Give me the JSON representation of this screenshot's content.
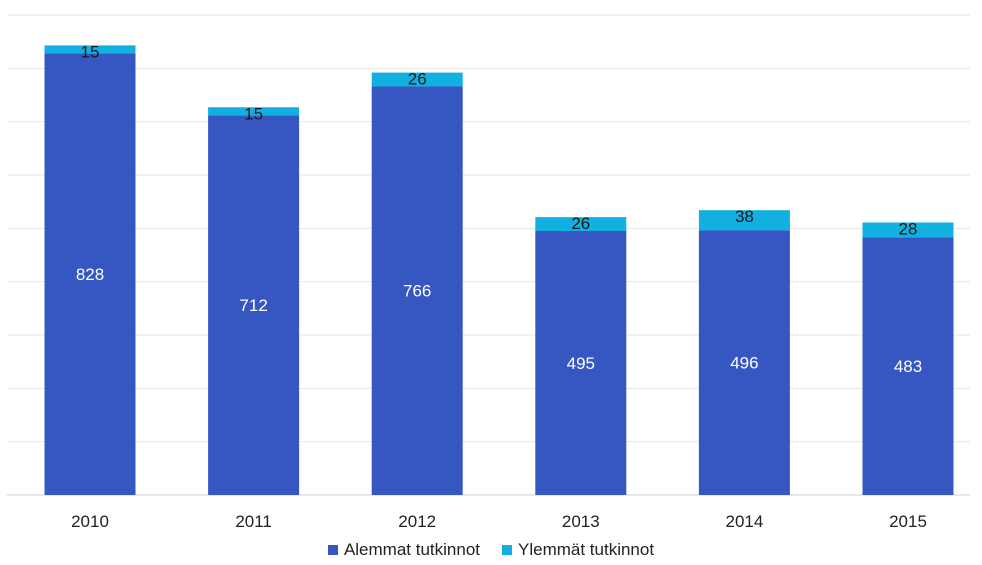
{
  "chart_data": {
    "type": "bar",
    "stacked": true,
    "categories": [
      "2010",
      "2011",
      "2012",
      "2013",
      "2014",
      "2015"
    ],
    "series": [
      {
        "name": "Alemmat tutkinnot",
        "color": "#3657c1",
        "values": [
          828,
          712,
          766,
          495,
          496,
          483
        ]
      },
      {
        "name": "Ylemmät tutkinnot",
        "color": "#12b0e0",
        "values": [
          15,
          15,
          26,
          26,
          38,
          28
        ]
      }
    ],
    "ylim": [
      0,
      900
    ],
    "grid": true,
    "legend": "bottom"
  }
}
